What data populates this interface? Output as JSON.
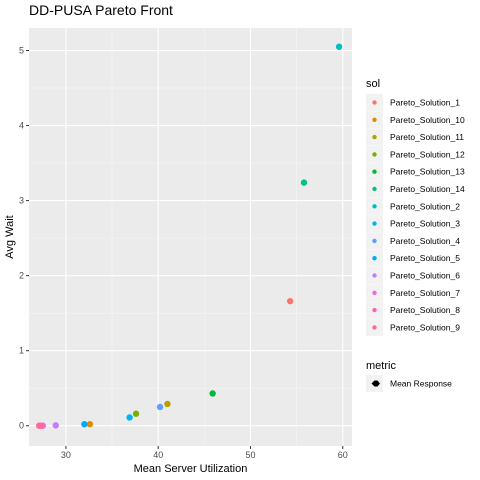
{
  "chart_data": {
    "type": "scatter",
    "title": "DD-PUSA Pareto Front",
    "xlabel": "Mean Server Utilization",
    "ylabel": "Avg Wait",
    "xlim": [
      26,
      61
    ],
    "ylim": [
      -0.27,
      5.3
    ],
    "x_ticks": [
      30,
      40,
      50,
      60
    ],
    "y_ticks": [
      0,
      1,
      2,
      3,
      4,
      5
    ],
    "grid": true,
    "legend_position": "right",
    "legend_color_title": "sol",
    "legend_shape_title": "metric",
    "legend_shape_label": "Mean Response",
    "series": [
      {
        "name": "Pareto_Solution_1",
        "color": "#F8766D",
        "x": 54.3,
        "y": 1.66
      },
      {
        "name": "Pareto_Solution_10",
        "color": "#DE8C00",
        "x": 32.6,
        "y": 0.02
      },
      {
        "name": "Pareto_Solution_11",
        "color": "#B79F00",
        "x": 41.0,
        "y": 0.29
      },
      {
        "name": "Pareto_Solution_12",
        "color": "#7CAE00",
        "x": 37.6,
        "y": 0.16
      },
      {
        "name": "Pareto_Solution_13",
        "color": "#00BA38",
        "x": 45.9,
        "y": 0.43
      },
      {
        "name": "Pareto_Solution_14",
        "color": "#00C08B",
        "x": 55.8,
        "y": 3.24
      },
      {
        "name": "Pareto_Solution_2",
        "color": "#00BFC4",
        "x": 59.6,
        "y": 5.05
      },
      {
        "name": "Pareto_Solution_3",
        "color": "#00B4F0",
        "x": 36.9,
        "y": 0.11
      },
      {
        "name": "Pareto_Solution_4",
        "color": "#619CFF",
        "x": 40.2,
        "y": 0.25
      },
      {
        "name": "Pareto_Solution_5",
        "color": "#00A9FF",
        "x": 32.0,
        "y": 0.02
      },
      {
        "name": "Pareto_Solution_6",
        "color": "#C77CFF",
        "x": 28.9,
        "y": 0.005
      },
      {
        "name": "Pareto_Solution_7",
        "color": "#F564E3",
        "x": 27.5,
        "y": 0.0
      },
      {
        "name": "Pareto_Solution_8",
        "color": "#FF64B0",
        "x": 27.1,
        "y": 0.0
      },
      {
        "name": "Pareto_Solution_9",
        "color": "#FF6C91",
        "x": 27.3,
        "y": 0.0
      }
    ]
  }
}
